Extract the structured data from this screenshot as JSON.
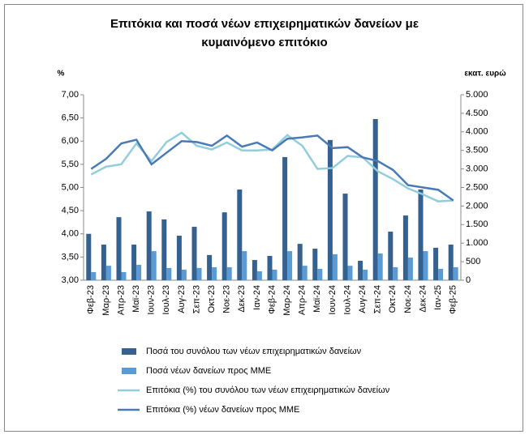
{
  "chart_data": {
    "type": "bar",
    "title": [
      "Επιτόκια και ποσά νέων επιχειρηματικών δανείων με",
      "κυμαινόμενο επιτόκιο"
    ],
    "y_label": "%",
    "y2_label": "εκατ. ευρώ",
    "categories": [
      "Φεβ-23",
      "Μαρ-23",
      "Απρ-23",
      "Μαϊ-23",
      "Ιουν-23",
      "Ιουλ-23",
      "Αυγ-23",
      "Σεπ-23",
      "Οκτ-23",
      "Νοε-23",
      "Δεκ-23",
      "Ιαν-24",
      "Φεβ-24",
      "Μαρ-24",
      "Απρ-24",
      "Μαϊ-24",
      "Ιουν-24",
      "Ιουλ-24",
      "Αυγ-24",
      "Σεπ-24",
      "Οκτ-24",
      "Νοε-24",
      "Δεκ-24",
      "Ιαν-25",
      "Φεβ-25"
    ],
    "ylim": [
      3,
      7
    ],
    "yticks": [
      {
        "value": 3,
        "label": "3,00"
      },
      {
        "value": 3.5,
        "label": "3,50"
      },
      {
        "value": 4,
        "label": "4,00"
      },
      {
        "value": 4.5,
        "label": "4,50"
      },
      {
        "value": 5,
        "label": "5,00"
      },
      {
        "value": 5.5,
        "label": "5,50"
      },
      {
        "value": 6,
        "label": "6,00"
      },
      {
        "value": 6.5,
        "label": "6,50"
      },
      {
        "value": 7,
        "label": "7,00"
      }
    ],
    "y2lim": [
      0,
      5000
    ],
    "y2ticks": [
      0,
      500,
      {
        "value": 1000,
        "label": "1.000"
      },
      {
        "value": 1500,
        "label": "1.500"
      },
      {
        "value": 2000,
        "label": "2.000"
      },
      {
        "value": 2500,
        "label": "2.500"
      },
      {
        "value": 3000,
        "label": "3.000"
      },
      {
        "value": 3500,
        "label": "3.500"
      },
      {
        "value": 4000,
        "label": "4.000"
      },
      {
        "value": 4500,
        "label": "4.500"
      },
      {
        "value": 5000,
        "label": "5.000"
      }
    ],
    "series": [
      {
        "name": "Ποσά του συνόλου των νέων επιχειρηματικών δανείων",
        "type": "bar",
        "axis": "y2",
        "color": "#34618f",
        "values": [
          1250,
          960,
          1700,
          960,
          1855,
          1640,
          1200,
          1440,
          680,
          1830,
          2445,
          545,
          655,
          3320,
          980,
          850,
          3780,
          2335,
          525,
          4345,
          1310,
          1745,
          2445,
          875,
          960
        ]
      },
      {
        "name": "Ποσά νέων δανείων προς ΜΜΕ",
        "type": "bar",
        "axis": "y2",
        "color": "#5b9bd5",
        "values": [
          220,
          390,
          220,
          415,
          785,
          330,
          285,
          330,
          350,
          350,
          785,
          240,
          285,
          785,
          390,
          305,
          700,
          390,
          285,
          720,
          350,
          610,
          785,
          305,
          350
        ]
      },
      {
        "name": "Επιτόκια (%) του συνόλου των νέων επιχειρηματικών δανείων",
        "type": "line",
        "axis": "y",
        "color": "#92cddc",
        "values": [
          5.28,
          5.45,
          5.5,
          5.95,
          5.57,
          5.98,
          6.18,
          5.9,
          5.82,
          5.97,
          5.8,
          5.8,
          5.82,
          6.13,
          5.9,
          5.4,
          5.42,
          5.68,
          5.65,
          5.35,
          5.18,
          4.98,
          4.85,
          4.7,
          4.72
        ]
      },
      {
        "name": "Επιτόκια (%) νέων δανείων προς ΜΜΕ",
        "type": "line",
        "axis": "y",
        "color": "#4a7ab5",
        "values": [
          5.4,
          5.62,
          5.95,
          6.03,
          5.5,
          5.75,
          6.0,
          5.98,
          5.9,
          6.12,
          5.88,
          5.97,
          5.8,
          6.05,
          6.08,
          6.12,
          5.85,
          5.87,
          5.65,
          5.57,
          5.38,
          5.05,
          5.0,
          4.95,
          4.72
        ]
      }
    ]
  }
}
